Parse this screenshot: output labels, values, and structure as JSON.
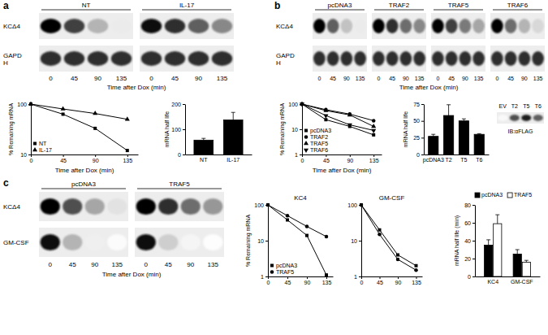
{
  "chart_data": [
    {
      "type": "blot",
      "panel": "a",
      "groups": [
        "NT",
        "IL-17"
      ],
      "x": [
        0,
        45,
        90,
        135
      ],
      "xlabel": "Time after Dox (min)",
      "rows": [
        {
          "name": "KCΔ4",
          "values": [
            [
              1,
              0.8,
              0.4,
              0.15
            ],
            [
              0.95,
              0.85,
              0.7,
              0.55
            ]
          ]
        },
        {
          "name": "GAPD H",
          "values": [
            [
              0.85,
              0.85,
              0.85,
              0.85
            ],
            [
              0.85,
              0.85,
              0.85,
              0.85
            ]
          ]
        }
      ]
    },
    {
      "type": "line",
      "log": "y",
      "x": [
        0,
        45,
        90,
        135
      ],
      "xlim": [
        0,
        150
      ],
      "xticks": [
        0,
        45,
        90,
        135
      ],
      "ylim": [
        10,
        100
      ],
      "yticks": [
        10,
        100
      ],
      "xlabel": "Time after Dox (min)",
      "ylabel": "% Remaining mRNA",
      "legend": "lower left",
      "series": [
        {
          "name": "NT",
          "color": "#000000",
          "marker": "square",
          "values": [
            100,
            63,
            33,
            12
          ]
        },
        {
          "name": "IL-17",
          "color": "#000000",
          "marker": "triangle",
          "values": [
            100,
            80,
            65,
            50
          ]
        }
      ]
    },
    {
      "type": "bar",
      "categories": [
        "NT",
        "IL-17"
      ],
      "values": [
        57,
        137
      ],
      "errors": [
        7,
        30
      ],
      "color": "#000000",
      "ylim": [
        0,
        200
      ],
      "yticks": [
        0,
        100,
        200
      ],
      "ylabel": "mRNA half life"
    },
    {
      "type": "blot",
      "panel": "b",
      "groups": [
        "pcDNA3",
        "TRAF2",
        "TRAF5",
        "TRAF6"
      ],
      "x": [
        0,
        45,
        90,
        135
      ],
      "xlabel": "Time after Dox (min)",
      "rows": [
        {
          "name": "KCΔ4",
          "values": [
            [
              1,
              0.7,
              0.35,
              0.15
            ],
            [
              1,
              0.85,
              0.65,
              0.55
            ],
            [
              1,
              0.8,
              0.6,
              0.45
            ],
            [
              1,
              0.65,
              0.4,
              0.25
            ]
          ]
        },
        {
          "name": "GAPD H",
          "values": [
            [
              0.85,
              0.85,
              0.85,
              0.85
            ],
            [
              0.85,
              0.85,
              0.85,
              0.85
            ],
            [
              0.85,
              0.85,
              0.85,
              0.85
            ],
            [
              0.85,
              0.85,
              0.85,
              0.85
            ]
          ]
        }
      ]
    },
    {
      "type": "line",
      "log": "y",
      "x": [
        0,
        45,
        90,
        135
      ],
      "xlim": [
        0,
        150
      ],
      "xticks": [
        0,
        45,
        90,
        135
      ],
      "ylim": [
        1,
        100
      ],
      "yticks": [
        1,
        10,
        100
      ],
      "xlabel": "Time after Dox (min)",
      "ylabel": "% Remaining mRNA",
      "legend": "lower left",
      "series": [
        {
          "name": "pcDNA3",
          "color": "#000000",
          "marker": "square",
          "values": [
            100,
            24,
            13,
            6
          ]
        },
        {
          "name": "TRAF2",
          "color": "#000000",
          "marker": "circle",
          "values": [
            100,
            60,
            40,
            22
          ]
        },
        {
          "name": "TRAF5",
          "color": "#000000",
          "marker": "triangle",
          "values": [
            100,
            55,
            37,
            13
          ]
        },
        {
          "name": "TRAF6",
          "color": "#000000",
          "marker": "triangle-down",
          "values": [
            100,
            35,
            15,
            9
          ]
        }
      ]
    },
    {
      "type": "bar",
      "categories": [
        "pcDNA3",
        "T2",
        "T5",
        "T6"
      ],
      "values": [
        27,
        58,
        50,
        30
      ],
      "errors": [
        3,
        16,
        3,
        1
      ],
      "color": "#000000",
      "ylim": [
        0,
        75
      ],
      "yticks": [
        0,
        25,
        50,
        75
      ],
      "ylabel": "mRNA half life"
    },
    {
      "type": "blot",
      "categories": [
        "EV",
        "T2",
        "T5",
        "T6"
      ],
      "values": [
        0.05,
        0.75,
        0.9,
        0.7
      ],
      "label": "IB:αFLAG"
    },
    {
      "type": "blot",
      "panel": "c",
      "groups": [
        "pcDNA3",
        "TRAF5"
      ],
      "x": [
        0,
        45,
        90,
        135
      ],
      "xlabel": "Time after Dox (min)",
      "rows": [
        {
          "name": "KCΔ4",
          "values": [
            [
              1,
              0.75,
              0.45,
              0.2
            ],
            [
              1,
              0.85,
              0.65,
              0.5
            ]
          ]
        },
        {
          "name": "GM-CSF",
          "values": [
            [
              0.95,
              0.4,
              0.12,
              0.03
            ],
            [
              0.95,
              0.3,
              0.08,
              0.02
            ]
          ]
        }
      ]
    },
    {
      "type": "line",
      "title": "KC4",
      "log": "y",
      "x": [
        0,
        45,
        90,
        135
      ],
      "xlim": [
        0,
        150
      ],
      "xticks": [
        0,
        45,
        90,
        135
      ],
      "ylim": [
        1,
        100
      ],
      "yticks": [
        1,
        10,
        100
      ],
      "ylabel": "% Remaining mRNA",
      "legend": "lower left",
      "series": [
        {
          "name": "pcDNA3",
          "color": "#000000",
          "marker": "square",
          "values": [
            100,
            38,
            14,
            1.1
          ]
        },
        {
          "name": "TRAF5",
          "color": "#000000",
          "marker": "circle",
          "values": [
            100,
            50,
            25,
            13
          ]
        }
      ]
    },
    {
      "type": "line",
      "title": "GM-CSF",
      "log": "y",
      "x": [
        0,
        45,
        90,
        135
      ],
      "xlim": [
        0,
        150
      ],
      "xticks": [
        0,
        45,
        90,
        135
      ],
      "ylim": [
        1,
        100
      ],
      "yticks": [
        1,
        10,
        100
      ],
      "series": [
        {
          "color": "#000000",
          "marker": "square",
          "values": [
            100,
            20,
            4,
            2
          ]
        },
        {
          "color": "#000000",
          "marker": "circle",
          "values": [
            100,
            15,
            3,
            1.5
          ]
        }
      ]
    },
    {
      "type": "bar",
      "categories": [
        "KC4",
        "GM-CSF"
      ],
      "ylim": [
        0,
        80
      ],
      "yticks": [
        0,
        20,
        40,
        60,
        80
      ],
      "ylabel": "mRNA half life (min)",
      "legend": "top",
      "series": [
        {
          "name": "pcDNA3",
          "color": "#000000",
          "values": [
            35,
            25
          ],
          "errors": [
            6,
            5
          ]
        },
        {
          "name": "TRAF5",
          "color": "#ffffff",
          "values": [
            59,
            16
          ],
          "errors": [
            10,
            2
          ]
        }
      ]
    }
  ]
}
